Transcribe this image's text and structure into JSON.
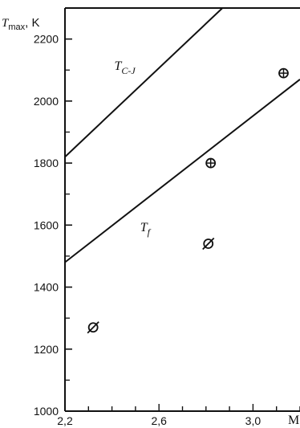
{
  "chart_data": {
    "type": "scatter",
    "ylabel": "T",
    "ylabel_sub": "max",
    "ylabel_unit": ", K",
    "xlabel": "M",
    "xlim": [
      2.2,
      3.2
    ],
    "ylim": [
      1000,
      2300
    ],
    "x_ticks": [
      {
        "value": 2.2,
        "label": "2,2"
      },
      {
        "value": 2.6,
        "label": "2,6"
      },
      {
        "value": 3.0,
        "label": "3,0"
      }
    ],
    "y_ticks": [
      {
        "value": 1000,
        "label": "1000"
      },
      {
        "value": 1200,
        "label": "1200"
      },
      {
        "value": 1400,
        "label": "1400"
      },
      {
        "value": 1600,
        "label": "1600"
      },
      {
        "value": 1800,
        "label": "1800"
      },
      {
        "value": 2000,
        "label": "2000"
      },
      {
        "value": 2200,
        "label": "2200"
      }
    ],
    "series": [
      {
        "name": "T_C-J",
        "label_main": "T",
        "label_sub": "C-J",
        "type": "line",
        "x": [
          2.2,
          2.87
        ],
        "y": [
          1820,
          2300
        ],
        "label_at": [
          2.41,
          2.1
        ]
      },
      {
        "name": "T_f",
        "label_main": "T",
        "label_sub": "f",
        "type": "line",
        "x": [
          2.2,
          3.2
        ],
        "y": [
          1480,
          2070
        ],
        "label_at": [
          2.52,
          1580
        ]
      }
    ],
    "points": [
      {
        "x": 2.32,
        "y": 1270,
        "marker": "slashed-circle"
      },
      {
        "x": 2.81,
        "y": 1540,
        "marker": "slashed-circle"
      },
      {
        "x": 2.82,
        "y": 1800,
        "marker": "crossed-circle"
      },
      {
        "x": 3.13,
        "y": 2090,
        "marker": "crossed-circle"
      }
    ]
  }
}
